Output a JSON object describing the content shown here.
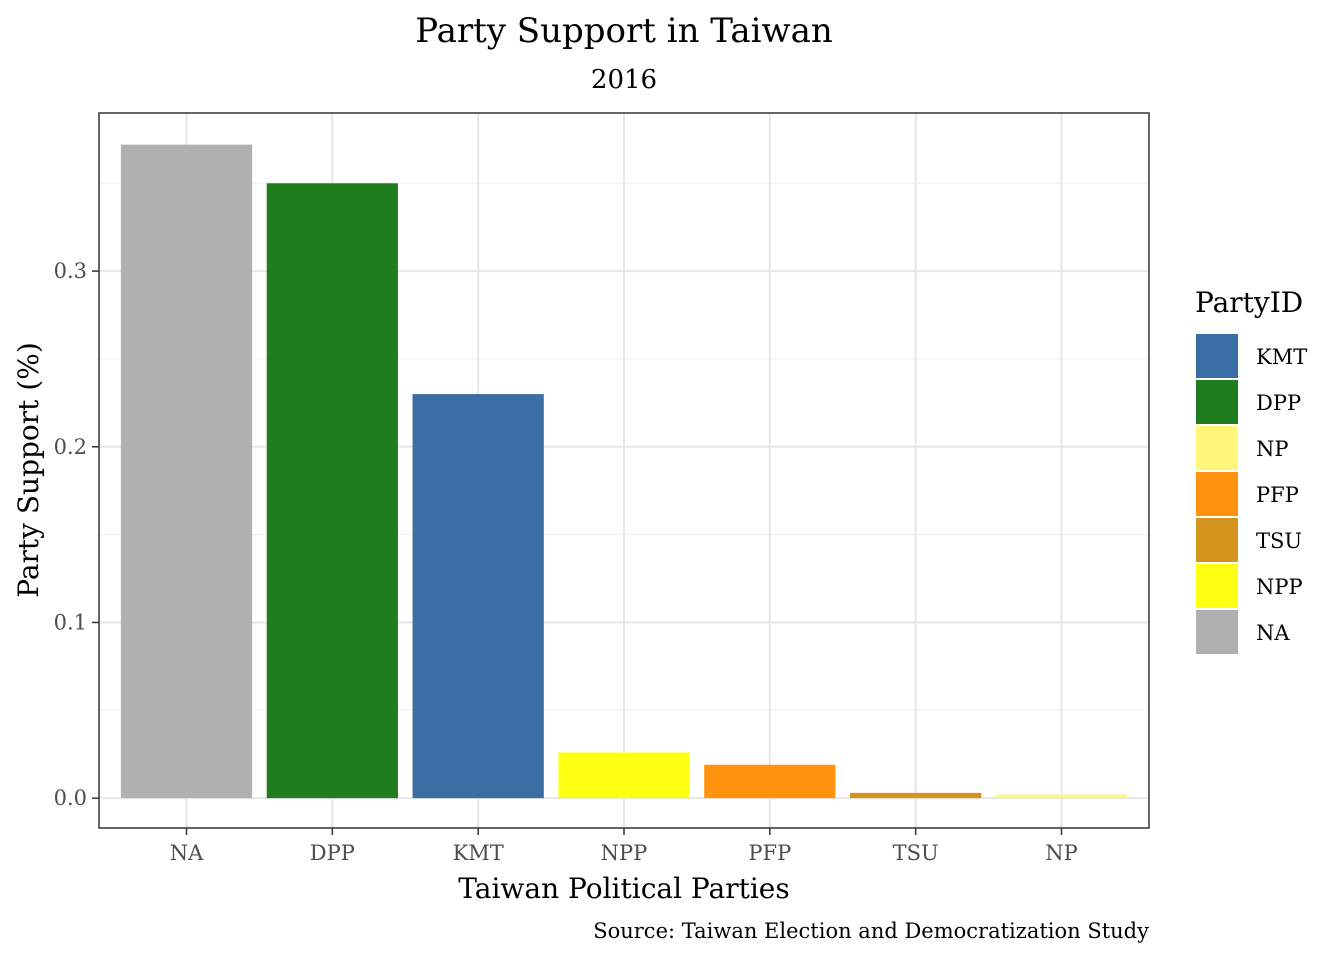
{
  "chart_data": {
    "type": "bar",
    "title": "Party Support in Taiwan",
    "subtitle": "2016",
    "xlabel": "Taiwan Political Parties",
    "ylabel": "Party Support (%)",
    "caption": "Source: Taiwan Election and Democratization Study",
    "categories": [
      "NA",
      "DPP",
      "KMT",
      "NPP",
      "PFP",
      "TSU",
      "NP"
    ],
    "values": [
      0.372,
      0.35,
      0.23,
      0.026,
      0.019,
      0.003,
      0.002
    ],
    "bar_colors": [
      "#b0b0b0",
      "#1f7d1e",
      "#3a6ea5",
      "#ffff14",
      "#ff920f",
      "#d4951f",
      "#fff67a"
    ],
    "ylim": [
      -0.017,
      0.39
    ],
    "yticks": [
      0.0,
      0.1,
      0.2,
      0.3
    ],
    "ytick_labels": [
      "0.0",
      "0.1",
      "0.2",
      "0.3"
    ],
    "grid": true,
    "legend": {
      "title": "PartyID",
      "position": "right",
      "items": [
        {
          "label": "KMT",
          "color": "#3a6ea5"
        },
        {
          "label": "DPP",
          "color": "#1f7d1e"
        },
        {
          "label": "NP",
          "color": "#fff67a"
        },
        {
          "label": "PFP",
          "color": "#ff920f"
        },
        {
          "label": "TSU",
          "color": "#d4951f"
        },
        {
          "label": "NPP",
          "color": "#ffff14"
        },
        {
          "label": "NA",
          "color": "#b0b0b0"
        }
      ]
    }
  }
}
